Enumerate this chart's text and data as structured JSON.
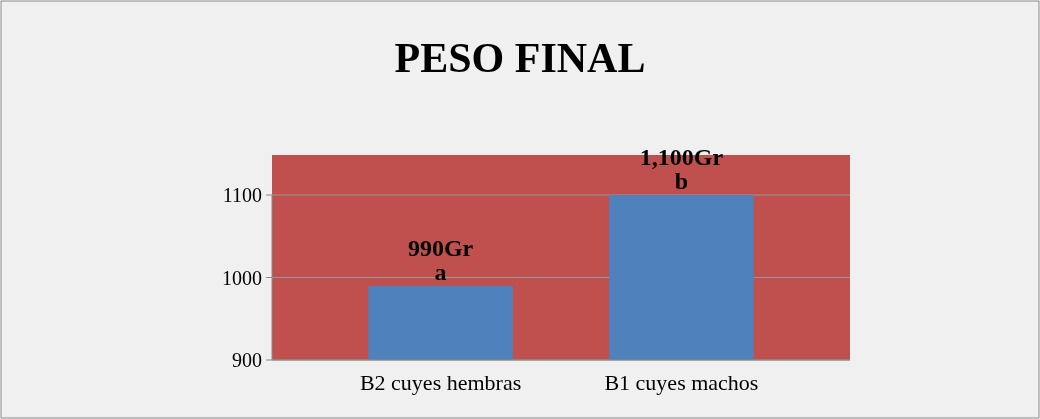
{
  "chart_data": {
    "type": "bar",
    "title": "PESO FINAL",
    "categories": [
      "B2  cuyes hembras",
      "B1  cuyes machos"
    ],
    "values": [
      990,
      1100
    ],
    "color": "#4f81bd",
    "value_labels": [
      "990Gr",
      "1,100Gr"
    ],
    "annotations": [
      {
        "text": "a",
        "x": "B2  cuyes hembras",
        "y": 990
      },
      {
        "text": "b",
        "x": "B1  cuyes machos",
        "y": 1100
      }
    ],
    "ylim": [
      900,
      1100
    ],
    "yticks": [
      900,
      1000,
      1100
    ],
    "grid": "y"
  }
}
